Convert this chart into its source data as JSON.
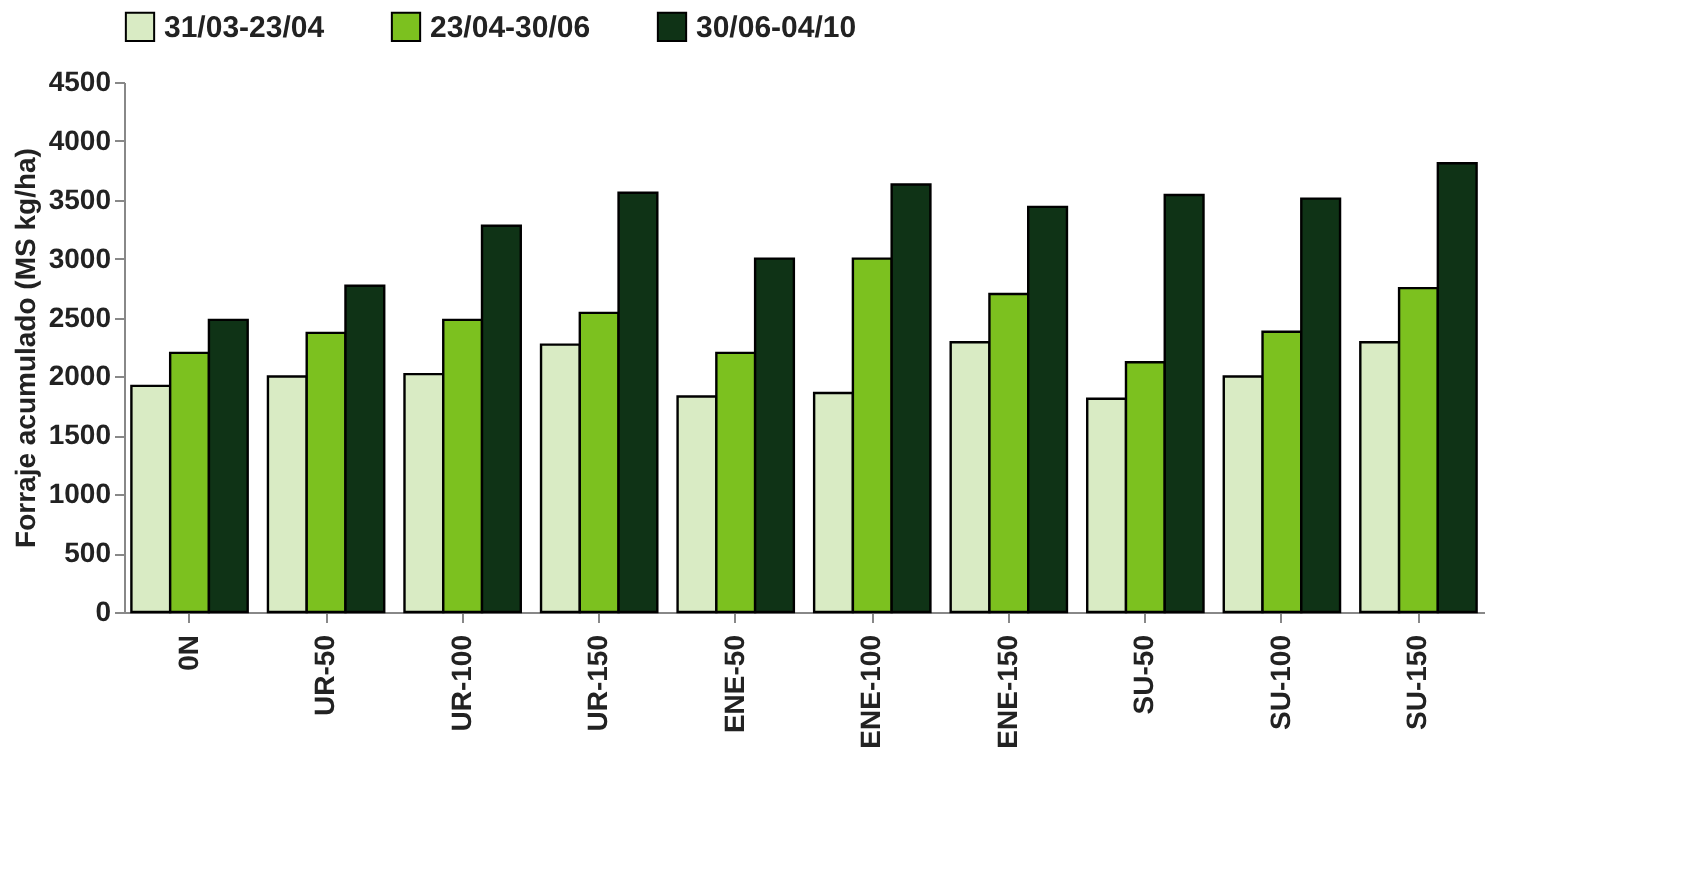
{
  "chart_data": {
    "type": "bar",
    "ylabel": "Forraje acumulado (MS kg/ha)",
    "categories": [
      "0N",
      "UR-50",
      "UR-100",
      "UR-150",
      "ENE-50",
      "ENE-100",
      "ENE-150",
      "SU-50",
      "SU-100",
      "SU-150"
    ],
    "series": [
      {
        "name": "31/03-23/04",
        "color": "#d9ebc4",
        "values": [
          1920,
          2000,
          2020,
          2270,
          1830,
          1860,
          2290,
          1810,
          2000,
          2290
        ]
      },
      {
        "name": "23/04-30/06",
        "color": "#7cc11f",
        "values": [
          2200,
          2370,
          2480,
          2540,
          2200,
          3000,
          2700,
          2120,
          2380,
          2750
        ]
      },
      {
        "name": "30/06-04/10",
        "color": "#0f3316",
        "values": [
          2480,
          2770,
          3280,
          3560,
          3000,
          3630,
          3440,
          3540,
          3510,
          3810
        ]
      }
    ],
    "ylim": [
      0,
      4500
    ],
    "yticks": [
      0,
      500,
      1000,
      1500,
      2000,
      2500,
      3000,
      3500,
      4000,
      4500
    ],
    "grid": false,
    "legend": "top"
  }
}
